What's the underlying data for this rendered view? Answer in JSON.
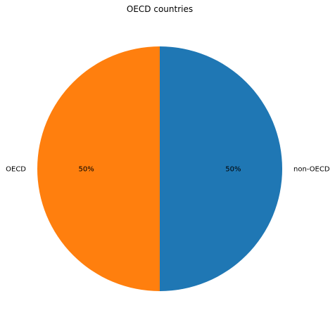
{
  "chart_data": {
    "type": "pie",
    "title": "OECD countries",
    "slices": [
      {
        "label": "non-OECD",
        "value": 50,
        "pct_label": "50%",
        "color": "#1f77b4"
      },
      {
        "label": "OECD",
        "value": 50,
        "pct_label": "50%",
        "color": "#ff7f0e"
      }
    ],
    "start_angle": "top (12 o'clock), counter-clockwise order shown clockwise from top"
  }
}
